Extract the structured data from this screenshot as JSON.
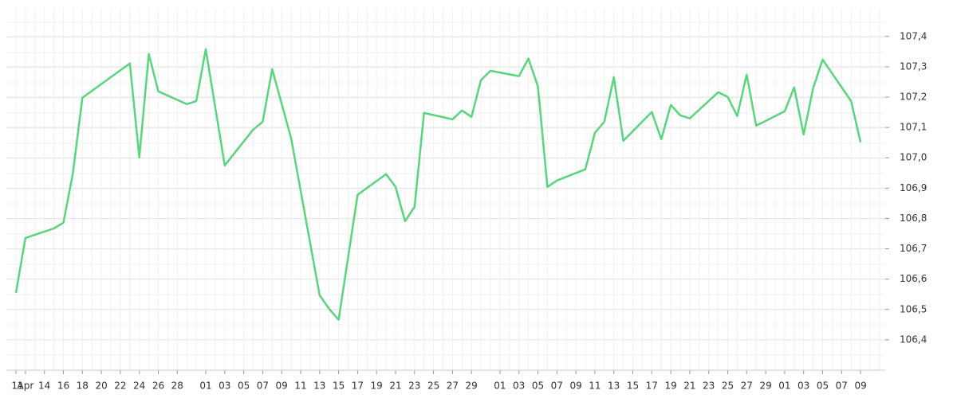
{
  "chart_data": {
    "type": "line",
    "x": [
      "Apr 11",
      "Apr 12",
      "Apr 15",
      "Apr 16",
      "Apr 17",
      "Apr 18",
      "Apr 23",
      "Apr 24",
      "Apr 25",
      "Apr 26",
      "Apr 29",
      "Apr 30",
      "May 1",
      "May 3",
      "May 6",
      "May 7",
      "May 8",
      "May 10",
      "May 13",
      "May 14",
      "May 15",
      "May 17",
      "May 20",
      "May 21",
      "May 22",
      "May 23",
      "May 24",
      "May 27",
      "May 28",
      "May 29",
      "May 30",
      "May 31",
      "Jun 3",
      "Jun 4",
      "Jun 5",
      "Jun 6",
      "Jun 7",
      "Jun 10",
      "Jun 11",
      "Jun 12",
      "Jun 13",
      "Jun 14",
      "Jun 17",
      "Jun 18",
      "Jun 19",
      "Jun 20",
      "Jun 21",
      "Jun 24",
      "Jun 25",
      "Jun 26",
      "Jun 27",
      "Jun 28",
      "Jul 1",
      "Jul 2",
      "Jul 3",
      "Jul 4",
      "Jul 5",
      "Jul 8",
      "Jul 9"
    ],
    "values": [
      106.555,
      106.736,
      106.767,
      106.786,
      106.949,
      107.198,
      107.311,
      107.001,
      107.342,
      107.219,
      107.177,
      107.187,
      107.358,
      106.975,
      107.093,
      107.119,
      107.292,
      107.064,
      106.547,
      106.502,
      106.466,
      106.878,
      106.946,
      106.904,
      106.791,
      106.838,
      107.148,
      107.127,
      107.156,
      107.135,
      107.256,
      107.287,
      107.269,
      107.327,
      107.235,
      106.904,
      106.925,
      106.962,
      107.082,
      107.119,
      107.266,
      107.056,
      107.151,
      107.061,
      107.174,
      107.14,
      107.13,
      107.216,
      107.201,
      107.138,
      107.274,
      107.106,
      107.153,
      107.232,
      107.077,
      107.229,
      107.324,
      107.187,
      107.051
    ],
    "color": "#5ad47e",
    "ylim": [
      106.3,
      107.494
    ],
    "yticks": [
      {
        "value": 106.4,
        "label": "106,4"
      },
      {
        "value": 106.5,
        "label": "106,5"
      },
      {
        "value": 106.6,
        "label": "106,6"
      },
      {
        "value": 106.7,
        "label": "106,7"
      },
      {
        "value": 106.8,
        "label": "106,8"
      },
      {
        "value": 106.9,
        "label": "106,9"
      },
      {
        "value": 107.0,
        "label": "107,0"
      },
      {
        "value": 107.1,
        "label": "107,1"
      },
      {
        "value": 107.2,
        "label": "107,2"
      },
      {
        "value": 107.3,
        "label": "107,3"
      },
      {
        "value": 107.4,
        "label": "107,4"
      }
    ],
    "xticks": [
      {
        "value": "Apr 11",
        "label": "11"
      },
      {
        "value": "Apr 12",
        "label": "Apr"
      },
      {
        "value": "Apr 14",
        "label": "14"
      },
      {
        "value": "Apr 16",
        "label": "16"
      },
      {
        "value": "Apr 18",
        "label": "18"
      },
      {
        "value": "Apr 20",
        "label": "20"
      },
      {
        "value": "Apr 22",
        "label": "22"
      },
      {
        "value": "Apr 24",
        "label": "24"
      },
      {
        "value": "Apr 26",
        "label": "26"
      },
      {
        "value": "Apr 28",
        "label": "28"
      },
      {
        "value": "May 1",
        "label": "01"
      },
      {
        "value": "May 3",
        "label": "03"
      },
      {
        "value": "May 5",
        "label": "05"
      },
      {
        "value": "May 7",
        "label": "07"
      },
      {
        "value": "May 9",
        "label": "09"
      },
      {
        "value": "May 11",
        "label": "11"
      },
      {
        "value": "May 13",
        "label": "13"
      },
      {
        "value": "May 15",
        "label": "15"
      },
      {
        "value": "May 17",
        "label": "17"
      },
      {
        "value": "May 19",
        "label": "19"
      },
      {
        "value": "May 21",
        "label": "21"
      },
      {
        "value": "May 23",
        "label": "23"
      },
      {
        "value": "May 25",
        "label": "25"
      },
      {
        "value": "May 27",
        "label": "27"
      },
      {
        "value": "May 29",
        "label": "29"
      },
      {
        "value": "Jun 1",
        "label": "01"
      },
      {
        "value": "Jun 3",
        "label": "03"
      },
      {
        "value": "Jun 5",
        "label": "05"
      },
      {
        "value": "Jun 7",
        "label": "07"
      },
      {
        "value": "Jun 9",
        "label": "09"
      },
      {
        "value": "Jun 11",
        "label": "11"
      },
      {
        "value": "Jun 13",
        "label": "13"
      },
      {
        "value": "Jun 15",
        "label": "15"
      },
      {
        "value": "Jun 17",
        "label": "17"
      },
      {
        "value": "Jun 19",
        "label": "19"
      },
      {
        "value": "Jun 21",
        "label": "21"
      },
      {
        "value": "Jun 23",
        "label": "23"
      },
      {
        "value": "Jun 25",
        "label": "25"
      },
      {
        "value": "Jun 27",
        "label": "27"
      },
      {
        "value": "Jun 29",
        "label": "29"
      },
      {
        "value": "Jul 1",
        "label": "01"
      },
      {
        "value": "Jul 3",
        "label": "03"
      },
      {
        "value": "Jul 5",
        "label": "05"
      },
      {
        "value": "Jul 7",
        "label": "07"
      },
      {
        "value": "Jul 9",
        "label": "09"
      }
    ],
    "grid": true
  }
}
